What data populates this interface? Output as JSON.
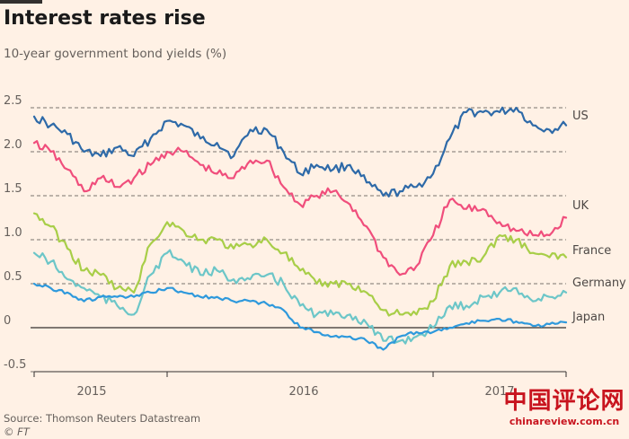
{
  "header": {
    "title": "Interest rates rise",
    "subtitle": "10-year government bond yields (%)"
  },
  "footer": {
    "source": "Source: Thomson Reuters Datastream",
    "credit": "© FT"
  },
  "watermark": {
    "text_cn": "中国评论网",
    "url": "chinareview.com.cn"
  },
  "colors": {
    "background": "#fff1e5",
    "gridline": "#33302e",
    "tick_text": "#66605c",
    "US": "#2e6aa8",
    "UK": "#f04e7c",
    "France": "#a8ce48",
    "Germany": "#6cc6c8",
    "Japan": "#2e99dc",
    "watermark": "#c8141e"
  },
  "chart_data": {
    "type": "line",
    "title": "Interest rates rise",
    "subtitle": "10-year government bond yields (%)",
    "xlabel": "",
    "ylabel": "",
    "x_ticks": [
      "2015",
      "2016",
      "2017"
    ],
    "y_ticks": [
      "2.5",
      "2.0",
      "1.5",
      "1.0",
      "0.5",
      "0",
      "-0.5"
    ],
    "ylim": [
      -0.5,
      2.5
    ],
    "xlim": [
      "2014-10",
      "2017-06"
    ],
    "grid": "horizontal dashed",
    "legend": "series labels at right end of lines",
    "series": [
      {
        "name": "US",
        "x": [
          "2014-10",
          "2014-11",
          "2014-12",
          "2015-01",
          "2015-02",
          "2015-03",
          "2015-04",
          "2015-05",
          "2015-06",
          "2015-07",
          "2015-08",
          "2015-09",
          "2015-10",
          "2015-11",
          "2015-12",
          "2016-01",
          "2016-02",
          "2016-03",
          "2016-04",
          "2016-05",
          "2016-06",
          "2016-07",
          "2016-08",
          "2016-09",
          "2016-10",
          "2016-11",
          "2016-12",
          "2017-01",
          "2017-02",
          "2017-03",
          "2017-04",
          "2017-05",
          "2017-06"
        ],
        "values": [
          2.4,
          2.3,
          2.2,
          2.0,
          1.95,
          2.05,
          1.95,
          2.15,
          2.35,
          2.3,
          2.15,
          2.1,
          1.95,
          2.25,
          2.25,
          2.0,
          1.75,
          1.85,
          1.8,
          1.85,
          1.65,
          1.5,
          1.55,
          1.6,
          1.75,
          2.15,
          2.45,
          2.45,
          2.45,
          2.5,
          2.3,
          2.25,
          2.3
        ]
      },
      {
        "name": "UK",
        "x": [
          "2014-10",
          "2014-11",
          "2014-12",
          "2015-01",
          "2015-02",
          "2015-03",
          "2015-04",
          "2015-05",
          "2015-06",
          "2015-07",
          "2015-08",
          "2015-09",
          "2015-10",
          "2015-11",
          "2015-12",
          "2016-01",
          "2016-02",
          "2016-03",
          "2016-04",
          "2016-05",
          "2016-06",
          "2016-07",
          "2016-08",
          "2016-09",
          "2016-10",
          "2016-11",
          "2016-12",
          "2017-01",
          "2017-02",
          "2017-03",
          "2017-04",
          "2017-05",
          "2017-06"
        ],
        "values": [
          2.1,
          2.0,
          1.8,
          1.55,
          1.7,
          1.6,
          1.7,
          1.85,
          2.0,
          2.0,
          1.85,
          1.75,
          1.7,
          1.9,
          1.9,
          1.6,
          1.4,
          1.5,
          1.55,
          1.4,
          1.15,
          0.8,
          0.6,
          0.7,
          1.05,
          1.45,
          1.35,
          1.35,
          1.2,
          1.1,
          1.05,
          1.05,
          1.25
        ]
      },
      {
        "name": "France",
        "x": [
          "2014-10",
          "2014-11",
          "2014-12",
          "2015-01",
          "2015-02",
          "2015-03",
          "2015-04",
          "2015-05",
          "2015-06",
          "2015-07",
          "2015-08",
          "2015-09",
          "2015-10",
          "2015-11",
          "2015-12",
          "2016-01",
          "2016-02",
          "2016-03",
          "2016-04",
          "2016-05",
          "2016-06",
          "2016-07",
          "2016-08",
          "2016-09",
          "2016-10",
          "2016-11",
          "2016-12",
          "2017-01",
          "2017-02",
          "2017-03",
          "2017-04",
          "2017-05",
          "2017-06"
        ],
        "values": [
          1.3,
          1.15,
          0.9,
          0.65,
          0.6,
          0.45,
          0.4,
          0.95,
          1.2,
          1.1,
          1.0,
          1.0,
          0.9,
          0.95,
          1.0,
          0.85,
          0.65,
          0.5,
          0.5,
          0.5,
          0.4,
          0.2,
          0.15,
          0.15,
          0.3,
          0.7,
          0.75,
          0.8,
          1.05,
          1.0,
          0.85,
          0.8,
          0.8
        ]
      },
      {
        "name": "Germany",
        "x": [
          "2014-10",
          "2014-11",
          "2014-12",
          "2015-01",
          "2015-02",
          "2015-03",
          "2015-04",
          "2015-05",
          "2015-06",
          "2015-07",
          "2015-08",
          "2015-09",
          "2015-10",
          "2015-11",
          "2015-12",
          "2016-01",
          "2016-02",
          "2016-03",
          "2016-04",
          "2016-05",
          "2016-06",
          "2016-07",
          "2016-08",
          "2016-09",
          "2016-10",
          "2016-11",
          "2016-12",
          "2017-01",
          "2017-02",
          "2017-03",
          "2017-04",
          "2017-05",
          "2017-06"
        ],
        "values": [
          0.85,
          0.75,
          0.55,
          0.45,
          0.35,
          0.25,
          0.15,
          0.6,
          0.85,
          0.75,
          0.6,
          0.65,
          0.55,
          0.55,
          0.6,
          0.5,
          0.25,
          0.15,
          0.15,
          0.15,
          0.05,
          -0.15,
          -0.15,
          -0.1,
          0.0,
          0.25,
          0.25,
          0.35,
          0.4,
          0.45,
          0.3,
          0.35,
          0.4
        ]
      },
      {
        "name": "Japan",
        "x": [
          "2014-10",
          "2014-11",
          "2014-12",
          "2015-01",
          "2015-02",
          "2015-03",
          "2015-04",
          "2015-05",
          "2015-06",
          "2015-07",
          "2015-08",
          "2015-09",
          "2015-10",
          "2015-11",
          "2015-12",
          "2016-01",
          "2016-02",
          "2016-03",
          "2016-04",
          "2016-05",
          "2016-06",
          "2016-07",
          "2016-08",
          "2016-09",
          "2016-10",
          "2016-11",
          "2016-12",
          "2017-01",
          "2017-02",
          "2017-03",
          "2017-04",
          "2017-05",
          "2017-06"
        ],
        "values": [
          0.5,
          0.45,
          0.4,
          0.3,
          0.35,
          0.35,
          0.35,
          0.4,
          0.45,
          0.4,
          0.35,
          0.35,
          0.3,
          0.3,
          0.27,
          0.2,
          0.0,
          -0.05,
          -0.1,
          -0.1,
          -0.15,
          -0.25,
          -0.1,
          -0.05,
          -0.05,
          0.0,
          0.05,
          0.08,
          0.1,
          0.07,
          0.02,
          0.04,
          0.06
        ]
      }
    ]
  }
}
